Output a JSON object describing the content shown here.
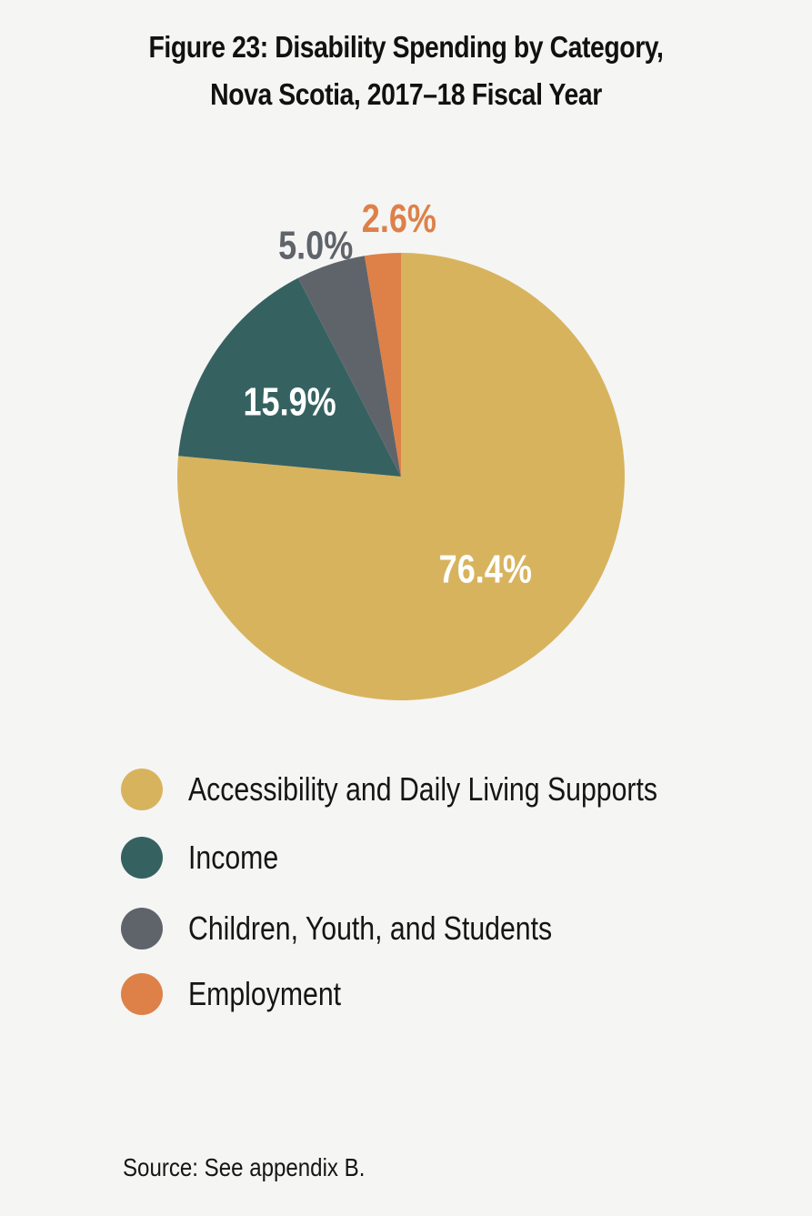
{
  "title_lines": [
    "Figure 23: Disability Spending by Category,",
    "Nova Scotia, 2017–18 Fiscal Year"
  ],
  "chart_data": {
    "type": "pie",
    "title": "Figure 23: Disability Spending by Category, Nova Scotia, 2017–18 Fiscal Year",
    "categories": [
      "Accessibility and Daily Living Supports",
      "Income",
      "Children, Youth, and Students",
      "Employment"
    ],
    "values": [
      76.4,
      15.9,
      5.0,
      2.6
    ],
    "labels": [
      "76.4%",
      "15.9%",
      "5.0%",
      "2.6%"
    ],
    "colors": [
      "#d8b35e",
      "#356261",
      "#5f646b",
      "#dd8148"
    ],
    "label_colors": [
      "#ffffff",
      "#ffffff",
      "#5f646b",
      "#dd8148"
    ],
    "legend_position": "bottom-left",
    "direction": "clockwise from top"
  },
  "source": "Source: See appendix B."
}
